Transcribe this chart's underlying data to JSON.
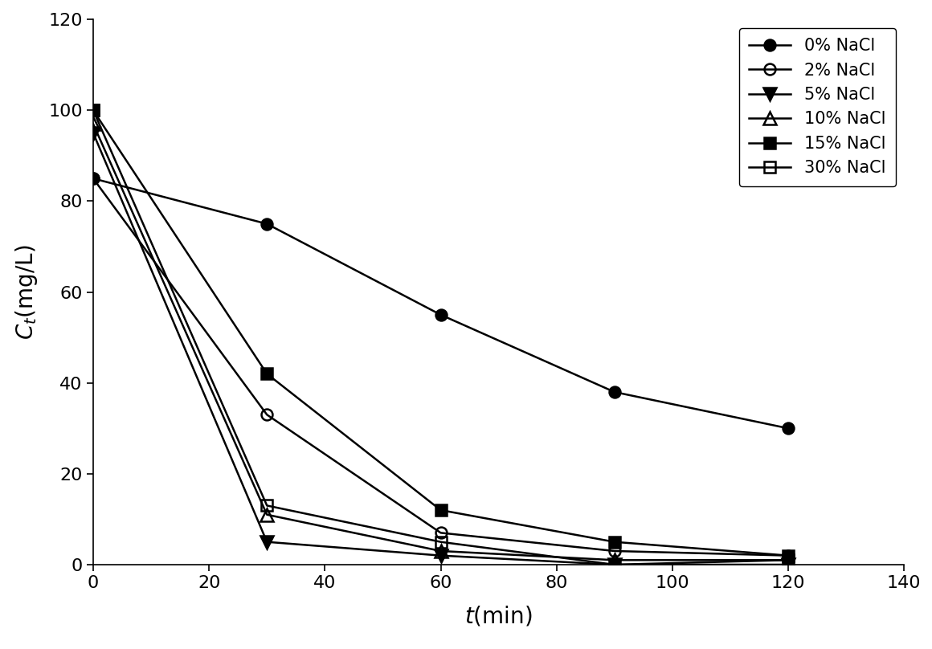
{
  "series": [
    {
      "label": "0% NaCl",
      "x": [
        0,
        30,
        60,
        90,
        120
      ],
      "y": [
        85,
        75,
        55,
        38,
        30
      ],
      "marker": "o",
      "fillstyle": "full",
      "color": "black",
      "markersize": 10,
      "zorder": 5
    },
    {
      "label": "2% NaCl",
      "x": [
        0,
        30,
        60,
        90,
        120
      ],
      "y": [
        85,
        33,
        7,
        3,
        2
      ],
      "marker": "o",
      "fillstyle": "none",
      "color": "black",
      "markersize": 10,
      "zorder": 4
    },
    {
      "label": "5% NaCl",
      "x": [
        0,
        30,
        60,
        90,
        120
      ],
      "y": [
        95,
        5,
        2,
        0,
        0
      ],
      "marker": "v",
      "fillstyle": "full",
      "color": "black",
      "markersize": 11,
      "zorder": 6
    },
    {
      "label": "10% NaCl",
      "x": [
        0,
        30,
        60,
        90,
        120
      ],
      "y": [
        97,
        11,
        3,
        1,
        1
      ],
      "marker": "^",
      "fillstyle": "none",
      "color": "black",
      "markersize": 11,
      "zorder": 3
    },
    {
      "label": "15% NaCl",
      "x": [
        0,
        30,
        60,
        90,
        120
      ],
      "y": [
        100,
        42,
        12,
        5,
        2
      ],
      "marker": "s",
      "fillstyle": "full",
      "color": "black",
      "markersize": 10,
      "zorder": 4
    },
    {
      "label": "30% NaCl",
      "x": [
        0,
        30,
        60,
        90,
        120
      ],
      "y": [
        100,
        13,
        5,
        0,
        1
      ],
      "marker": "s",
      "fillstyle": "none",
      "color": "black",
      "markersize": 10,
      "zorder": 3
    }
  ],
  "xlabel": "$\\mathit{t}$(min)",
  "ylabel": "$\\mathit{C_t}$(mg/L)",
  "xlim": [
    0,
    140
  ],
  "ylim": [
    0,
    120
  ],
  "xticks": [
    0,
    20,
    40,
    60,
    80,
    100,
    120,
    140
  ],
  "yticks": [
    0,
    20,
    40,
    60,
    80,
    100,
    120
  ],
  "legend_loc": "upper right",
  "linewidth": 1.8,
  "background_color": "#ffffff",
  "tick_fontsize": 16,
  "label_fontsize": 20,
  "legend_fontsize": 15
}
